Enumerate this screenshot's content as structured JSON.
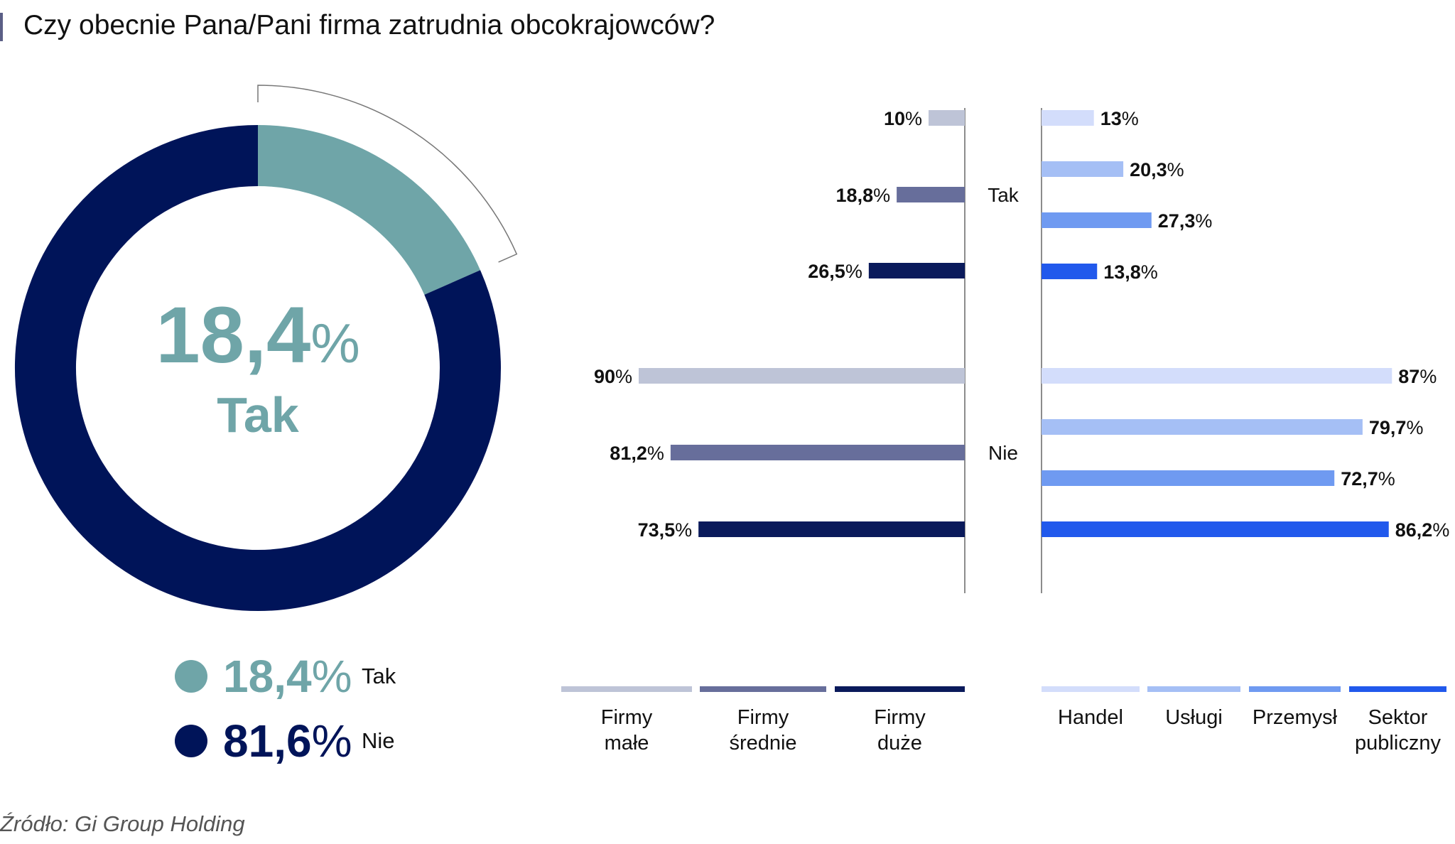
{
  "title": "Czy obecnie Pana/Pani firma zatrudnia obcokrajowców?",
  "source": "Źródło: Gi Group Holding",
  "colors": {
    "tak": "#6fa5a8",
    "nie": "#001459",
    "firmy_male": "#bec4d7",
    "firmy_srednie": "#676e9b",
    "firmy_duze": "#0a1a5b",
    "handel": "#d3ddfb",
    "uslugi": "#a5bff5",
    "przemysl": "#6f9af1",
    "sektor_publiczny": "#2159ec"
  },
  "donut": {
    "center_value": "18,4",
    "center_unit": "%",
    "center_label": "Tak"
  },
  "legend": [
    {
      "value": "18,4",
      "unit": "%",
      "label": "Tak",
      "color": "#6fa5a8"
    },
    {
      "value": "81,6",
      "unit": "%",
      "label": "Nie",
      "color": "#001459"
    }
  ],
  "chart_data": [
    {
      "type": "pie",
      "subtype": "donut",
      "categories": [
        "Tak",
        "Nie"
      ],
      "values": [
        18.4,
        81.6
      ],
      "unit": "%"
    },
    {
      "type": "bar",
      "orientation": "horizontal",
      "direction": "left",
      "groups": [
        "Tak",
        "Nie"
      ],
      "series": [
        {
          "name": "Firmy małe",
          "name_lines": [
            "Firmy",
            "małe"
          ],
          "values": [
            10,
            90
          ],
          "labels": [
            "10%",
            "90%"
          ],
          "color": "#bec4d7"
        },
        {
          "name": "Firmy średnie",
          "name_lines": [
            "Firmy",
            "średnie"
          ],
          "values": [
            18.8,
            81.2
          ],
          "labels": [
            "18,8%",
            "81,2%"
          ],
          "color": "#676e9b"
        },
        {
          "name": "Firmy duże",
          "name_lines": [
            "Firmy",
            "duże"
          ],
          "values": [
            26.5,
            73.5
          ],
          "labels": [
            "26,5%",
            "73,5%"
          ],
          "color": "#0a1a5b"
        }
      ]
    },
    {
      "type": "bar",
      "orientation": "horizontal",
      "direction": "right",
      "groups": [
        "Tak",
        "Nie"
      ],
      "series": [
        {
          "name": "Handel",
          "name_lines": [
            "Handel"
          ],
          "values": [
            13,
            87
          ],
          "labels": [
            "13%",
            "87%"
          ],
          "color": "#d3ddfb"
        },
        {
          "name": "Usługi",
          "name_lines": [
            "Usługi"
          ],
          "values": [
            20.3,
            79.7
          ],
          "labels": [
            "20,3%",
            "79,7%"
          ],
          "color": "#a5bff5"
        },
        {
          "name": "Przemysł",
          "name_lines": [
            "Przemysł"
          ],
          "values": [
            27.3,
            72.7
          ],
          "labels": [
            "27,3%",
            "72,7%"
          ],
          "color": "#6f9af1"
        },
        {
          "name": "Sektor publiczny",
          "name_lines": [
            "Sektor",
            "publiczny"
          ],
          "values": [
            13.8,
            86.2
          ],
          "labels": [
            "13,8%",
            "86,2%"
          ],
          "color": "#2159ec"
        }
      ]
    }
  ]
}
